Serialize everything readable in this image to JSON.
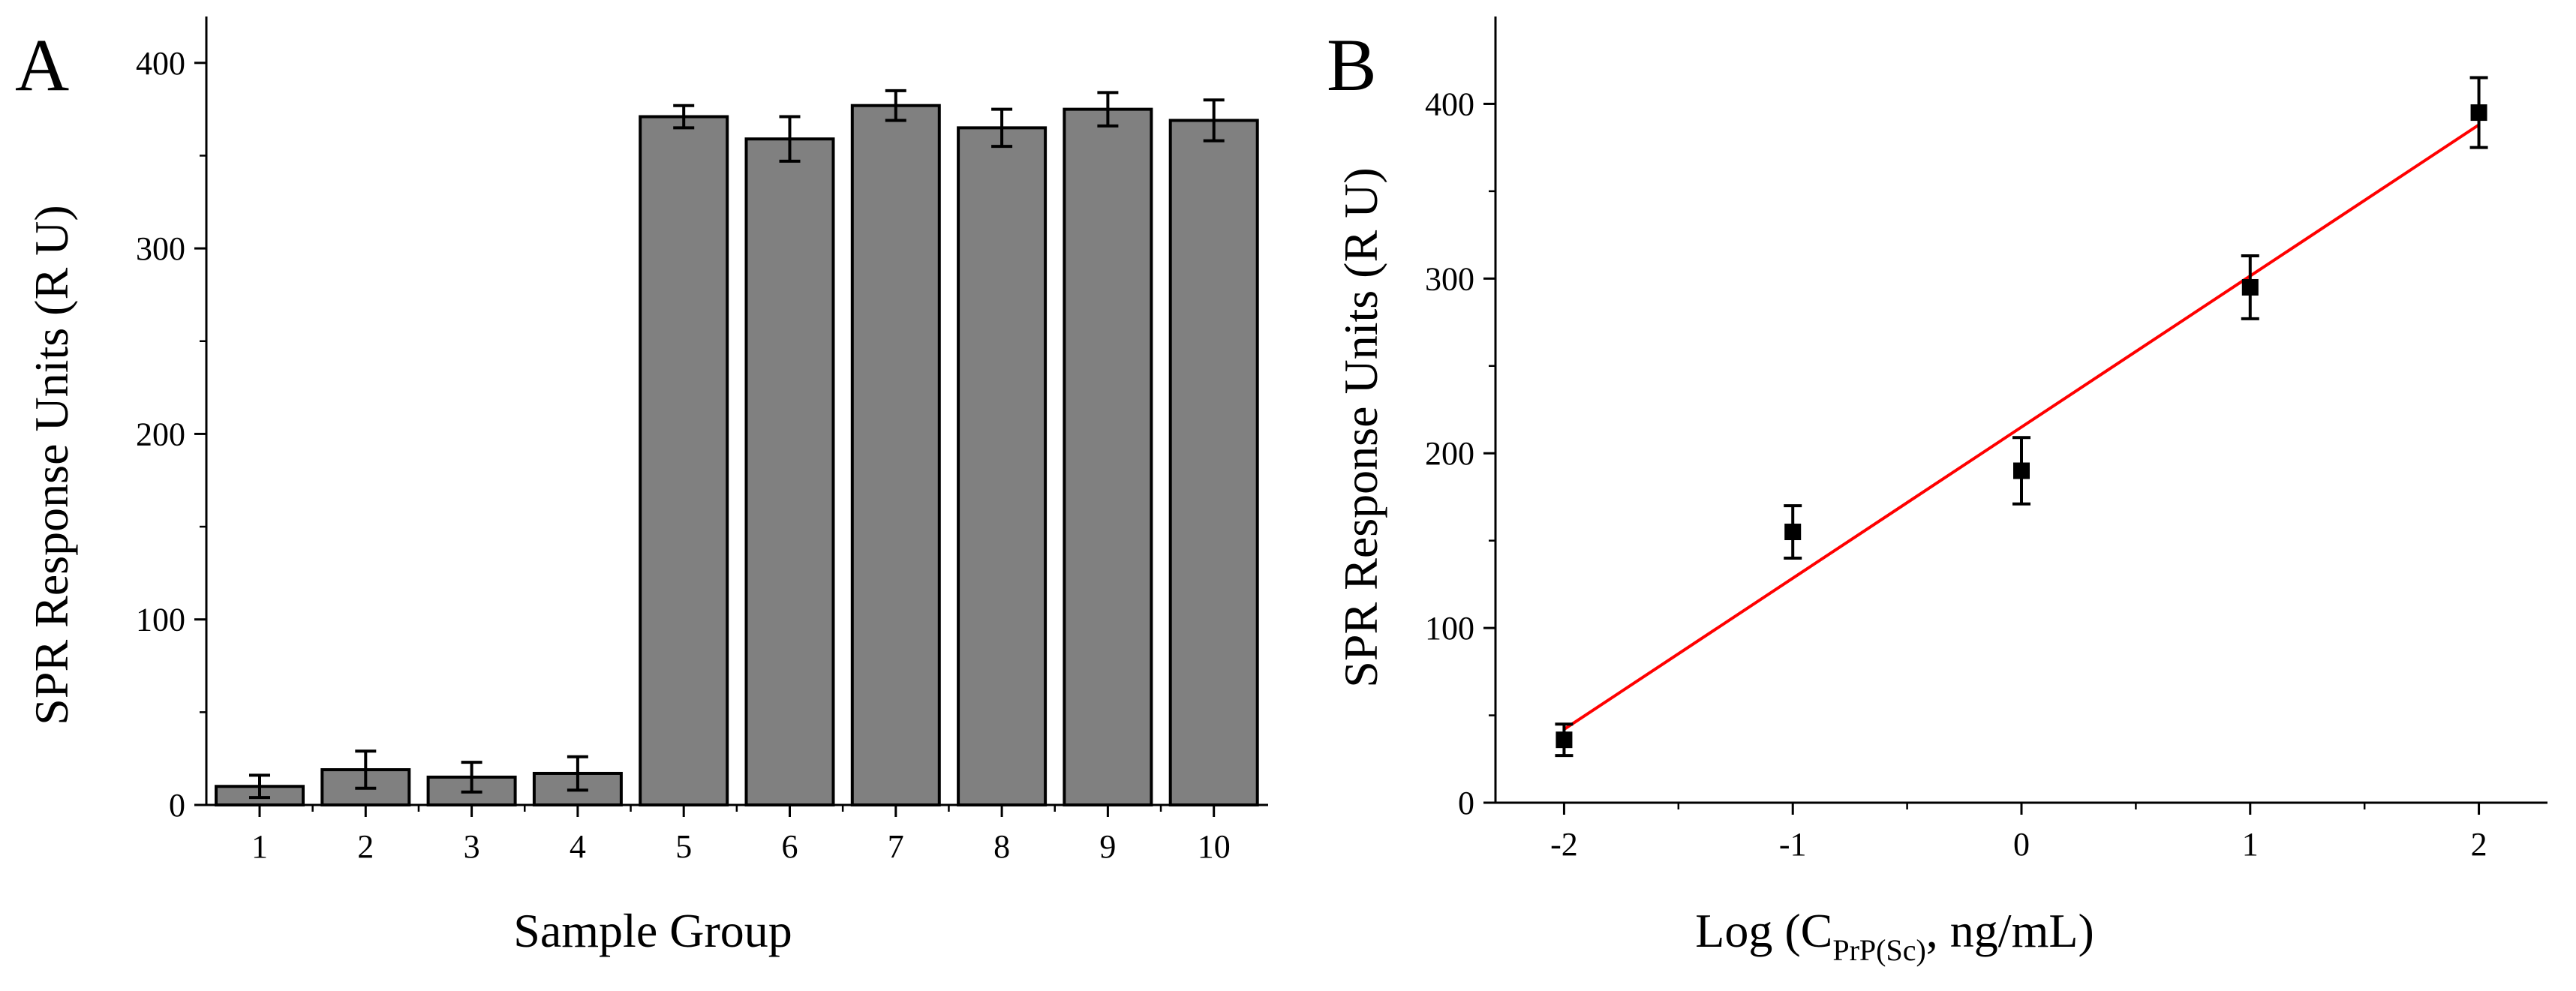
{
  "chart_data": [
    {
      "panel": "A",
      "type": "bar",
      "title": "",
      "xlabel": "Sample Group",
      "ylabel": "SPR Response Units (R U)",
      "categories": [
        "1",
        "2",
        "3",
        "4",
        "5",
        "6",
        "7",
        "8",
        "9",
        "10"
      ],
      "values": [
        10,
        19,
        15,
        17,
        371,
        359,
        377,
        365,
        375,
        369
      ],
      "errors": [
        6,
        10,
        8,
        9,
        6,
        12,
        8,
        10,
        9,
        11
      ],
      "ylim": [
        0,
        425
      ],
      "yticks": [
        0,
        100,
        200,
        300,
        400
      ],
      "ytick_labels": [
        "0",
        "100",
        "200",
        "300",
        "400"
      ],
      "bar_color": "#808080"
    },
    {
      "panel": "B",
      "type": "scatter",
      "title": "",
      "xlabel": {
        "prefix": "Log (C",
        "subscript": "PrP(Sc)",
        "suffix": ", ng/mL)"
      },
      "ylabel": "SPR Response Units (R U)",
      "x": [
        -2,
        -1,
        0,
        1,
        2
      ],
      "y": [
        36,
        155,
        190,
        295,
        395
      ],
      "errors": [
        9,
        15,
        19,
        18,
        20
      ],
      "fit_line": {
        "x": [
          -2,
          2
        ],
        "y": [
          42,
          388
        ],
        "color": "#ff0000"
      },
      "xlim": [
        -2.3,
        2.3
      ],
      "ylim": [
        0,
        450
      ],
      "xticks": [
        -2,
        -1,
        0,
        1,
        2
      ],
      "xtick_labels": [
        "-2",
        "-1",
        "0",
        "1",
        "2"
      ],
      "yticks": [
        0,
        100,
        200,
        300,
        400
      ],
      "ytick_labels": [
        "0",
        "100",
        "200",
        "300",
        "400"
      ],
      "marker_color": "#000000"
    }
  ]
}
